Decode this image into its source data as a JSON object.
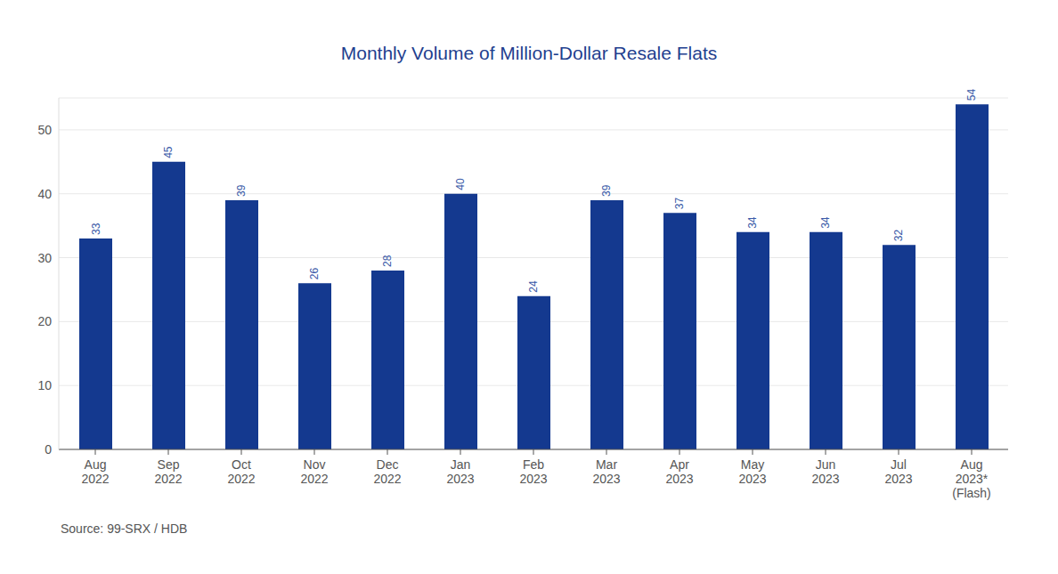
{
  "chart_data": {
    "type": "bar",
    "title": "Monthly Volume of Million-Dollar Resale Flats",
    "source": "Source: 99-SRX / HDB",
    "categories": [
      "Aug 2022",
      "Sep 2022",
      "Oct 2022",
      "Nov 2022",
      "Dec 2022",
      "Jan 2023",
      "Feb 2023",
      "Mar 2023",
      "Apr 2023",
      "May 2023",
      "Jun 2023",
      "Jul 2023",
      "Aug 2023* (Flash)"
    ],
    "values": [
      33,
      45,
      39,
      26,
      28,
      40,
      24,
      39,
      37,
      34,
      34,
      32,
      54
    ],
    "color": "#14398f",
    "ylim": [
      0,
      55
    ],
    "yticks": [
      0,
      10,
      20,
      30,
      40,
      50
    ],
    "grid": true,
    "data_labels": true
  }
}
